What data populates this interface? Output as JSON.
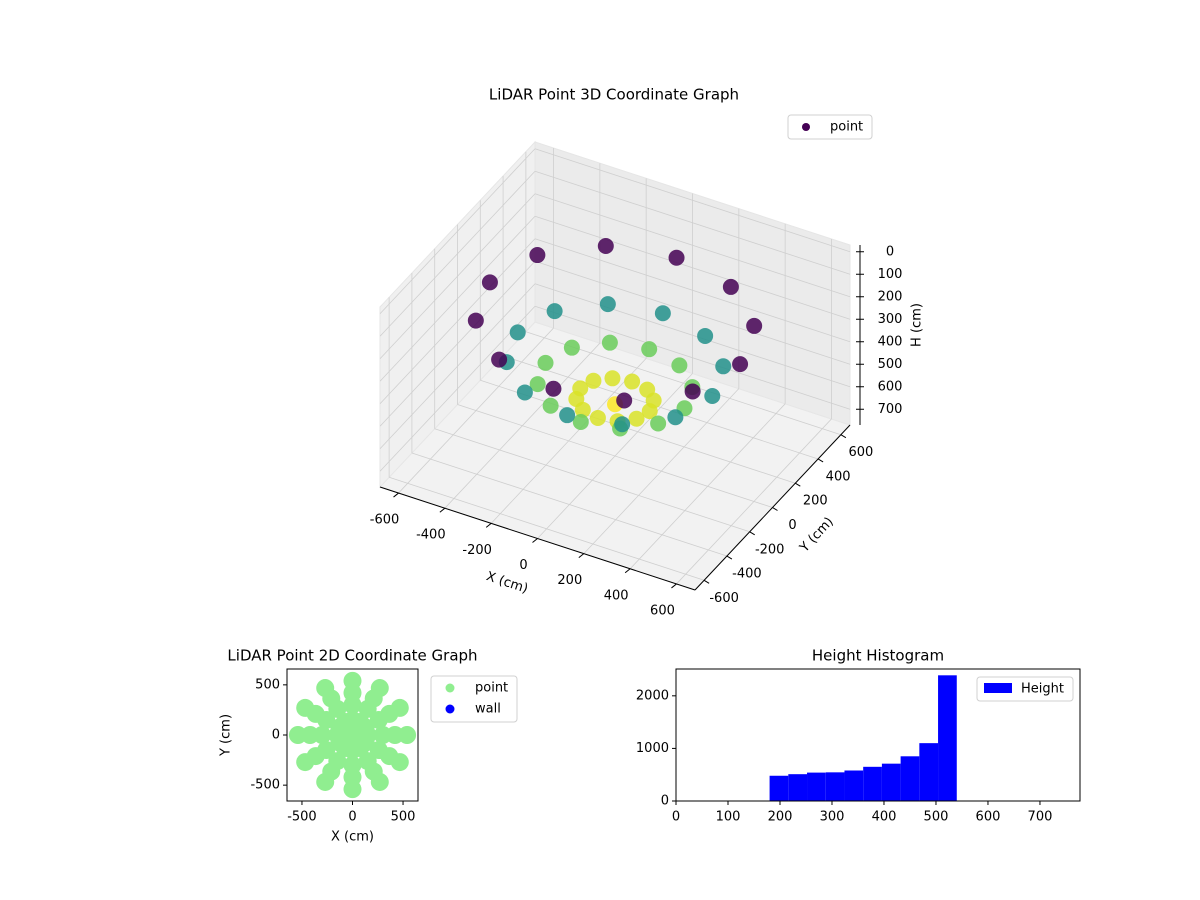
{
  "chart_data": [
    {
      "type": "scatter3d",
      "title": "LiDAR Point 3D Coordinate Graph",
      "xlabel": "X (cm)",
      "ylabel": "Y (cm)",
      "zlabel": "H (cm)",
      "series": [
        {
          "name": "point",
          "colormap": "viridis",
          "x": [
            0,
            150,
            130,
            75,
            0,
            -75,
            -130,
            -150,
            -130,
            -75,
            0,
            75,
            130,
            300,
            260,
            150,
            0,
            -150,
            -260,
            -300,
            -260,
            -150,
            0,
            150,
            260,
            420,
            364,
            210,
            0,
            -210,
            -364,
            -420,
            -364,
            -210,
            0,
            210,
            364,
            540,
            468,
            270,
            0,
            -270,
            -468,
            -540,
            -468,
            -270,
            0,
            270,
            468
          ],
          "y": [
            0,
            0,
            75,
            130,
            150,
            130,
            75,
            0,
            -75,
            -130,
            -150,
            -130,
            -75,
            0,
            150,
            260,
            300,
            260,
            150,
            0,
            -150,
            -260,
            -300,
            -260,
            -150,
            0,
            210,
            364,
            420,
            364,
            210,
            0,
            -210,
            -364,
            -420,
            -364,
            -210,
            0,
            270,
            468,
            540,
            468,
            270,
            0,
            -270,
            -468,
            -540,
            -468,
            -270
          ],
          "z": [
            540,
            520,
            520,
            520,
            520,
            520,
            520,
            520,
            520,
            520,
            520,
            520,
            520,
            457,
            457,
            457,
            457,
            457,
            457,
            457,
            457,
            457,
            457,
            457,
            457,
            362,
            362,
            362,
            362,
            362,
            362,
            362,
            362,
            362,
            362,
            362,
            362,
            180,
            180,
            180,
            180,
            180,
            180,
            180,
            180,
            180,
            180,
            180,
            180
          ]
        }
      ],
      "xlim": [
        -680,
        680
      ],
      "ylim": [
        -680,
        680
      ],
      "zlim": [
        770,
        -30
      ],
      "xticks": [
        -600,
        -400,
        -200,
        0,
        200,
        400,
        600
      ],
      "yticks": [
        -600,
        -400,
        -200,
        0,
        200,
        400,
        600
      ],
      "zticks": [
        0,
        100,
        200,
        300,
        400,
        500,
        600,
        700
      ],
      "grid": true,
      "legend": "upper right"
    },
    {
      "type": "scatter",
      "title": "LiDAR Point 2D Coordinate Graph",
      "xlabel": "X (cm)",
      "ylabel": "Y (cm)",
      "series": [
        {
          "name": "point",
          "color": "#90ee90",
          "x": [
            0,
            150,
            130,
            75,
            0,
            -75,
            -130,
            -150,
            -130,
            -75,
            0,
            75,
            130,
            300,
            260,
            150,
            0,
            -150,
            -260,
            -300,
            -260,
            -150,
            0,
            150,
            260,
            420,
            364,
            210,
            0,
            -210,
            -364,
            -420,
            -364,
            -210,
            0,
            210,
            364,
            540,
            468,
            270,
            0,
            -270,
            -468,
            -540,
            -468,
            -270,
            0,
            270,
            468
          ],
          "y": [
            0,
            0,
            75,
            130,
            150,
            130,
            75,
            0,
            -75,
            -130,
            -150,
            -130,
            -75,
            0,
            150,
            260,
            300,
            260,
            150,
            0,
            -150,
            -260,
            -300,
            -260,
            -150,
            0,
            210,
            364,
            420,
            364,
            210,
            0,
            -210,
            -364,
            -420,
            -364,
            -210,
            0,
            270,
            468,
            540,
            468,
            270,
            0,
            -270,
            -468,
            -540,
            -468,
            -270
          ]
        },
        {
          "name": "wall",
          "color": "#0000ff",
          "x": [],
          "y": []
        }
      ],
      "xlim": [
        -648,
        648
      ],
      "ylim": [
        -658,
        658
      ],
      "xticks": [
        -500,
        0,
        500
      ],
      "yticks": [
        -500,
        0,
        500
      ],
      "legend": "outside right"
    },
    {
      "type": "histogram",
      "title": "Height Histogram",
      "series": [
        {
          "name": "Height",
          "color": "#0000ff",
          "bins": [
            180,
            216,
            252,
            288,
            324,
            360,
            396,
            432,
            468,
            504,
            540
          ],
          "values": [
            480,
            510,
            540,
            545,
            580,
            650,
            710,
            850,
            1100,
            2390
          ]
        }
      ],
      "xlim": [
        0,
        777
      ],
      "ylim": [
        0,
        2510
      ],
      "xticks": [
        0,
        100,
        200,
        300,
        400,
        500,
        600,
        700
      ],
      "yticks": [
        0,
        1000,
        2000
      ],
      "legend": "upper right"
    }
  ]
}
